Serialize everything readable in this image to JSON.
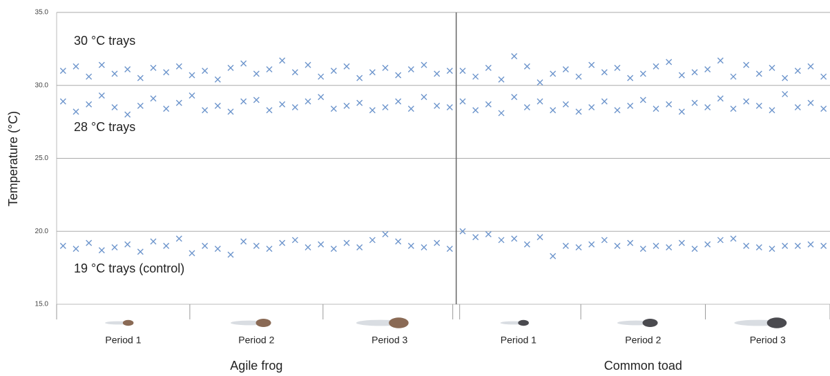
{
  "chart_data": {
    "type": "scatter",
    "y_label": "Temperature (°C)",
    "ylim": [
      15,
      35
    ],
    "yticks": [
      {
        "value": 15,
        "label": "15.0"
      },
      {
        "value": 20,
        "label": "20.0"
      },
      {
        "value": 25,
        "label": "25.0"
      },
      {
        "value": 30,
        "label": "30.0"
      },
      {
        "value": 35,
        "label": "35.0"
      }
    ],
    "grid": true,
    "xlim": [
      0.5,
      60.5
    ],
    "groups": [
      {
        "name": "Agile frog",
        "periods": [
          "Period 1",
          "Period 2",
          "Period 3"
        ],
        "x": [
          1,
          2,
          3,
          4,
          5,
          6,
          7,
          8,
          9,
          10,
          11,
          12,
          13,
          14,
          15,
          16,
          17,
          18,
          19,
          20,
          21,
          22,
          23,
          24,
          25,
          26,
          27,
          28,
          29,
          30,
          31
        ]
      },
      {
        "name": "Common toad",
        "periods": [
          "Period 1",
          "Period 2",
          "Period 3"
        ],
        "x": [
          32,
          33,
          34,
          35,
          36,
          37,
          38,
          39,
          40,
          41,
          42,
          43,
          44,
          45,
          46,
          47,
          48,
          49,
          50,
          51,
          52,
          53,
          54,
          55,
          56,
          57,
          58,
          59,
          60
        ]
      }
    ],
    "series": [
      {
        "name": "30 °C trays",
        "color": "#6d95cc",
        "values": [
          [
            31.0,
            31.3,
            30.6,
            31.4,
            30.8,
            31.1,
            30.5,
            31.2,
            30.9,
            31.3,
            30.7,
            31.0,
            30.4,
            31.2,
            31.5,
            30.8,
            31.1,
            31.7,
            30.9,
            31.4,
            30.6,
            31.0,
            31.3,
            30.5,
            30.9,
            31.2,
            30.7,
            31.1,
            31.4,
            30.8,
            31.0
          ],
          [
            31.0,
            30.6,
            31.2,
            30.4,
            32.0,
            31.3,
            30.2,
            30.8,
            31.1,
            30.6,
            31.4,
            30.9,
            31.2,
            30.5,
            30.8,
            31.3,
            31.6,
            30.7,
            30.9,
            31.1,
            31.7,
            30.6,
            31.4,
            30.8,
            31.2,
            30.5,
            31.0,
            31.3,
            30.6
          ]
        ]
      },
      {
        "name": "28 °C trays",
        "color": "#6d95cc",
        "values": [
          [
            28.9,
            28.2,
            28.7,
            29.3,
            28.5,
            28.0,
            28.6,
            29.1,
            28.4,
            28.8,
            29.3,
            28.3,
            28.6,
            28.2,
            28.9,
            29.0,
            28.3,
            28.7,
            28.5,
            28.9,
            29.2,
            28.4,
            28.6,
            28.8,
            28.3,
            28.5,
            28.9,
            28.4,
            29.2,
            28.6,
            28.5
          ],
          [
            28.9,
            28.3,
            28.7,
            28.1,
            29.2,
            28.5,
            28.9,
            28.3,
            28.7,
            28.2,
            28.5,
            28.9,
            28.3,
            28.6,
            29.0,
            28.4,
            28.7,
            28.2,
            28.8,
            28.5,
            29.1,
            28.4,
            28.9,
            28.6,
            28.3,
            29.4,
            28.5,
            28.8,
            28.4
          ]
        ]
      },
      {
        "name": "19 °C trays (control)",
        "color": "#6d95cc",
        "values": [
          [
            19.0,
            18.8,
            19.2,
            18.7,
            18.9,
            19.1,
            18.6,
            19.3,
            19.0,
            19.5,
            18.5,
            19.0,
            18.8,
            18.4,
            19.3,
            19.0,
            18.8,
            19.2,
            19.4,
            18.9,
            19.1,
            18.8,
            19.2,
            18.9,
            19.4,
            19.8,
            19.3,
            19.0,
            18.9,
            19.2,
            18.8
          ],
          [
            20.0,
            19.6,
            19.8,
            19.4,
            19.5,
            19.1,
            19.6,
            18.3,
            19.0,
            18.9,
            19.1,
            19.4,
            19.0,
            19.2,
            18.8,
            19.0,
            18.9,
            19.2,
            18.8,
            19.1,
            19.4,
            19.5,
            19.0,
            18.9,
            18.8,
            19.0,
            19.0,
            19.1,
            19.0
          ]
        ]
      }
    ]
  }
}
